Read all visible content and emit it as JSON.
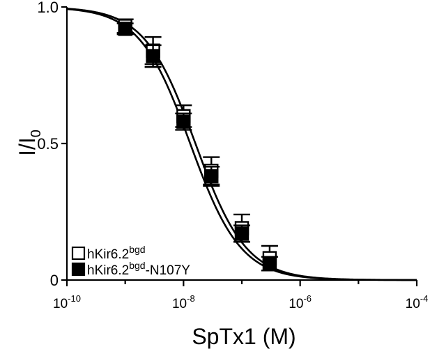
{
  "chart_data": {
    "type": "scatter",
    "xlabel": "SpTx1 (M)",
    "ylabel": {
      "main": "I/I",
      "sub": "0"
    },
    "x_scale": "log",
    "xlim": [
      1e-10,
      0.0001
    ],
    "ylim": [
      0,
      1.0
    ],
    "x_ticks": [
      {
        "value": 1e-10,
        "base": "10",
        "exp": "-10"
      },
      {
        "value": 1e-08,
        "base": "10",
        "exp": "-8"
      },
      {
        "value": 1e-06,
        "base": "10",
        "exp": "-6"
      },
      {
        "value": 0.0001,
        "base": "10",
        "exp": "-4"
      }
    ],
    "y_ticks": [
      {
        "value": 0,
        "label": "0"
      },
      {
        "value": 0.5,
        "label": "0.5"
      },
      {
        "value": 1.0,
        "label": "1.0"
      }
    ],
    "grid": false,
    "legend_position": "bottom-left",
    "series": [
      {
        "name": {
          "base": "hKir6.2",
          "sup": "bgd",
          "suffix": ""
        },
        "marker": "open-square",
        "x": [
          1e-09,
          3e-09,
          1e-08,
          3e-08,
          1e-07,
          3e-07
        ],
        "y": [
          0.93,
          0.84,
          0.6,
          0.4,
          0.19,
          0.08
        ],
        "err": [
          0.025,
          0.05,
          0.04,
          0.05,
          0.05,
          0.045
        ],
        "fit": {
          "ic50": 1.6e-08,
          "hill": 1.0
        }
      },
      {
        "name": {
          "base": "hKir6.2",
          "sup": "bgd",
          "suffix": "-N107Y"
        },
        "marker": "filled-square",
        "x": [
          1e-09,
          3e-09,
          1e-08,
          3e-08,
          1e-07,
          3e-07
        ],
        "y": [
          0.92,
          0.82,
          0.58,
          0.38,
          0.17,
          0.06
        ],
        "err": [
          0.02,
          0.04,
          0.03,
          0.035,
          0.03,
          0.025
        ],
        "fit": {
          "ic50": 1.3e-08,
          "hill": 1.0
        }
      }
    ]
  }
}
